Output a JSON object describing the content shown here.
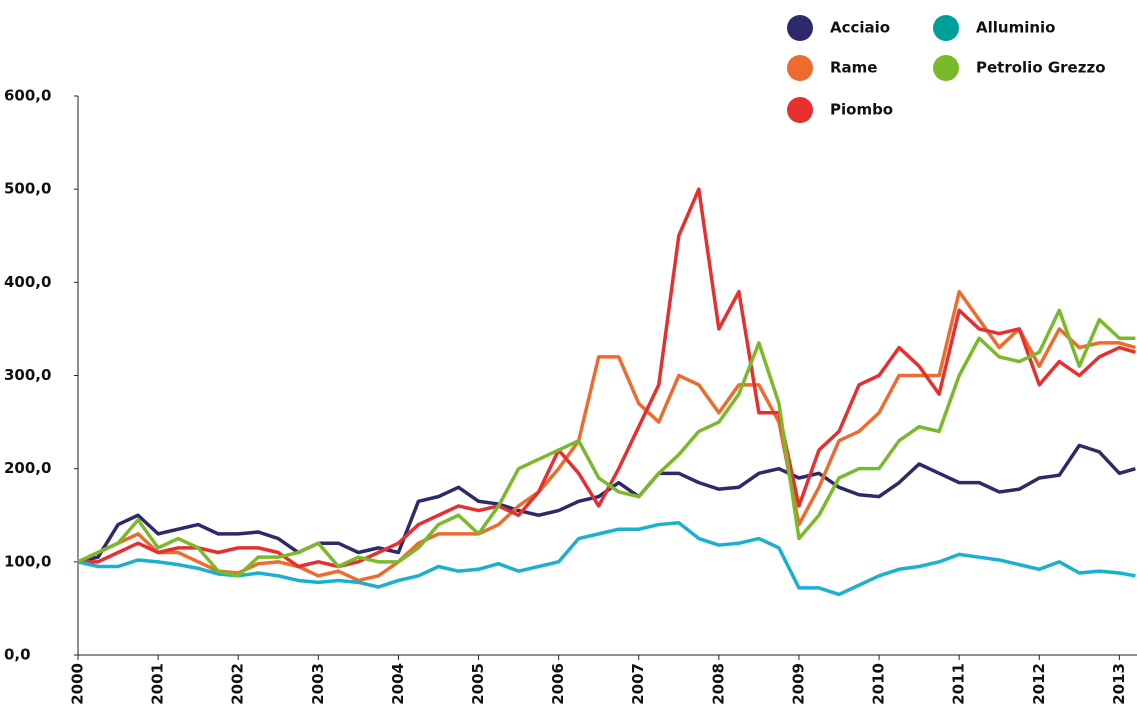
{
  "chart_data": {
    "type": "line",
    "x": [
      2000,
      2000.25,
      2000.5,
      2000.75,
      2001,
      2001.25,
      2001.5,
      2001.75,
      2002,
      2002.25,
      2002.5,
      2002.75,
      2003,
      2003.25,
      2003.5,
      2003.75,
      2004,
      2004.25,
      2004.5,
      2004.75,
      2005,
      2005.25,
      2005.5,
      2005.75,
      2006,
      2006.25,
      2006.5,
      2006.75,
      2007,
      2007.25,
      2007.5,
      2007.75,
      2008,
      2008.25,
      2008.5,
      2008.75,
      2009,
      2009.25,
      2009.5,
      2009.75,
      2010,
      2010.25,
      2010.5,
      2010.75,
      2011,
      2011.25,
      2011.5,
      2011.75,
      2012,
      2012.25,
      2012.5,
      2012.75,
      2013,
      2013.2
    ],
    "xlim": [
      2000,
      2013.22
    ],
    "xticks": [
      2000,
      2001,
      2002,
      2003,
      2004,
      2005,
      2006,
      2007,
      2008,
      2009,
      2010,
      2011,
      2012,
      2013
    ],
    "ylim": [
      0,
      600
    ],
    "yticks": [
      {
        "value": 0,
        "label": "0,0"
      },
      {
        "value": 100,
        "label": "100,0"
      },
      {
        "value": 200,
        "label": "200,0"
      },
      {
        "value": 300,
        "label": "300,0"
      },
      {
        "value": 400,
        "label": "400,0"
      },
      {
        "value": 500,
        "label": "500,0"
      },
      {
        "value": 600,
        "label": "600,0"
      }
    ],
    "series": [
      {
        "name": "Acciaio",
        "color": "#2d2a6b",
        "values": [
          100,
          105,
          140,
          150,
          130,
          135,
          140,
          130,
          130,
          132,
          125,
          110,
          120,
          120,
          110,
          115,
          110,
          165,
          170,
          180,
          165,
          162,
          155,
          150,
          155,
          165,
          170,
          185,
          170,
          195,
          195,
          185,
          178,
          180,
          195,
          200,
          190,
          195,
          180,
          172,
          170,
          185,
          205,
          195,
          185,
          185,
          175,
          178,
          190,
          193,
          225,
          218,
          195,
          200
        ]
      },
      {
        "name": "Rame",
        "color": "#ec6b2d",
        "values": [
          100,
          110,
          120,
          130,
          110,
          110,
          100,
          90,
          88,
          98,
          100,
          95,
          85,
          90,
          80,
          85,
          100,
          120,
          130,
          130,
          130,
          140,
          160,
          175,
          200,
          230,
          320,
          320,
          270,
          250,
          300,
          290,
          260,
          290,
          290,
          250,
          140,
          180,
          230,
          240,
          260,
          300,
          300,
          300,
          390,
          360,
          330,
          350,
          310,
          350,
          330,
          335,
          335,
          330
        ]
      },
      {
        "name": "Piombo",
        "color": "#e63030",
        "values": [
          100,
          100,
          110,
          120,
          110,
          115,
          115,
          110,
          115,
          115,
          110,
          95,
          100,
          95,
          100,
          110,
          120,
          140,
          150,
          160,
          155,
          160,
          150,
          175,
          220,
          195,
          160,
          200,
          245,
          290,
          450,
          500,
          350,
          390,
          260,
          260,
          160,
          220,
          240,
          290,
          300,
          330,
          310,
          280,
          370,
          350,
          345,
          350,
          290,
          315,
          300,
          320,
          330,
          325
        ]
      },
      {
        "name": "Alluminio",
        "color": "#1ab0d0",
        "legend_color": "#00a09a",
        "values": [
          100,
          95,
          95,
          102,
          100,
          97,
          93,
          87,
          85,
          88,
          85,
          80,
          78,
          80,
          78,
          73,
          80,
          85,
          95,
          90,
          92,
          98,
          90,
          95,
          100,
          125,
          130,
          135,
          135,
          140,
          142,
          125,
          118,
          120,
          125,
          115,
          72,
          72,
          65,
          75,
          85,
          92,
          95,
          100,
          108,
          105,
          102,
          97,
          92,
          100,
          88,
          90,
          88,
          85
        ]
      },
      {
        "name": "Petrolio Grezzo",
        "color": "#7ab929",
        "values": [
          100,
          110,
          120,
          145,
          115,
          125,
          115,
          90,
          85,
          105,
          105,
          110,
          120,
          95,
          105,
          100,
          100,
          115,
          140,
          150,
          130,
          160,
          200,
          210,
          220,
          230,
          190,
          175,
          170,
          195,
          215,
          240,
          250,
          280,
          335,
          270,
          125,
          150,
          190,
          200,
          200,
          230,
          245,
          240,
          300,
          340,
          320,
          315,
          325,
          370,
          310,
          360,
          340,
          340
        ]
      }
    ]
  }
}
